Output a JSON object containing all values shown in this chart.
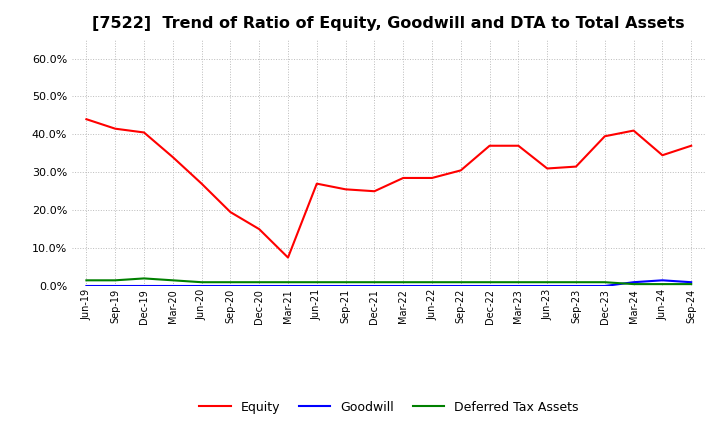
{
  "title": "[7522]  Trend of Ratio of Equity, Goodwill and DTA to Total Assets",
  "x_labels": [
    "Jun-19",
    "Sep-19",
    "Dec-19",
    "Mar-20",
    "Jun-20",
    "Sep-20",
    "Dec-20",
    "Mar-21",
    "Jun-21",
    "Sep-21",
    "Dec-21",
    "Mar-22",
    "Jun-22",
    "Sep-22",
    "Dec-22",
    "Mar-23",
    "Jun-23",
    "Sep-23",
    "Dec-23",
    "Mar-24",
    "Jun-24",
    "Sep-24"
  ],
  "equity": [
    0.44,
    0.415,
    0.405,
    0.34,
    0.27,
    0.195,
    0.15,
    0.075,
    0.27,
    0.255,
    0.25,
    0.285,
    0.285,
    0.305,
    0.37,
    0.37,
    0.31,
    0.315,
    0.395,
    0.41,
    0.345,
    0.37
  ],
  "goodwill": [
    0.0,
    0.0,
    0.0,
    0.0,
    0.0,
    0.0,
    0.0,
    0.0,
    0.0,
    0.0,
    0.0,
    0.0,
    0.0,
    0.0,
    0.0,
    0.0,
    0.0,
    0.0,
    0.0,
    0.01,
    0.015,
    0.01
  ],
  "dta": [
    0.015,
    0.015,
    0.02,
    0.015,
    0.01,
    0.01,
    0.01,
    0.01,
    0.01,
    0.01,
    0.01,
    0.01,
    0.01,
    0.01,
    0.01,
    0.01,
    0.01,
    0.01,
    0.01,
    0.005,
    0.005,
    0.005
  ],
  "equity_color": "#FF0000",
  "goodwill_color": "#0000FF",
  "dta_color": "#008000",
  "ylim": [
    0.0,
    0.65
  ],
  "yticks": [
    0.0,
    0.1,
    0.2,
    0.3,
    0.4,
    0.5,
    0.6
  ],
  "background_color": "#FFFFFF",
  "grid_color": "#BBBBBB",
  "title_fontsize": 11.5
}
